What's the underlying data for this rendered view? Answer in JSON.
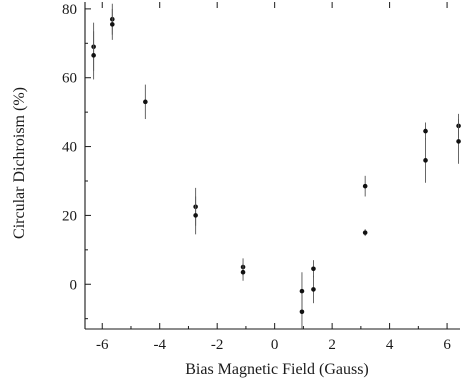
{
  "chart_data": {
    "type": "scatter",
    "title": "",
    "xlabel": "Bias Magnetic Field (Gauss)",
    "ylabel": "Circular Dichroism (%)",
    "xlim": [
      -6.6,
      6.45
    ],
    "ylim": [
      -13,
      82
    ],
    "x_ticks": [
      -6,
      -4,
      -2,
      0,
      2,
      4,
      6
    ],
    "y_ticks": [
      0,
      20,
      40,
      60,
      80
    ],
    "x_tick_labels": [
      "-6",
      "-4",
      "-2",
      "0",
      "2",
      "4",
      "6"
    ],
    "y_tick_labels": [
      "0",
      "20",
      "40",
      "60",
      "80"
    ],
    "grid": false,
    "legend": "none",
    "error_bars": true,
    "points": [
      {
        "x": -6.3,
        "y": 69,
        "err": 7
      },
      {
        "x": -6.3,
        "y": 66.5,
        "err": 7
      },
      {
        "x": -5.65,
        "y": 77,
        "err": 4.5
      },
      {
        "x": -5.65,
        "y": 75.5,
        "err": 4.5
      },
      {
        "x": -4.5,
        "y": 53,
        "err": 5
      },
      {
        "x": -2.75,
        "y": 22.5,
        "err": 5.5
      },
      {
        "x": -2.75,
        "y": 20,
        "err": 5.5
      },
      {
        "x": -1.1,
        "y": 5,
        "err": 2.5
      },
      {
        "x": -1.1,
        "y": 3.5,
        "err": 2.5
      },
      {
        "x": 0.95,
        "y": -2,
        "err": 5.5
      },
      {
        "x": 0.95,
        "y": -8,
        "err": 5
      },
      {
        "x": 1.35,
        "y": 4.5,
        "err": 2.5
      },
      {
        "x": 1.35,
        "y": -1.5,
        "err": 4
      },
      {
        "x": 3.15,
        "y": 28.5,
        "err": 3
      },
      {
        "x": 3.15,
        "y": 15,
        "err": 1
      },
      {
        "x": 5.25,
        "y": 44.5,
        "err": 2.5
      },
      {
        "x": 5.25,
        "y": 36,
        "err": 6.5
      },
      {
        "x": 6.4,
        "y": 46,
        "err": 3.5
      },
      {
        "x": 6.4,
        "y": 41.5,
        "err": 6.5
      }
    ]
  }
}
